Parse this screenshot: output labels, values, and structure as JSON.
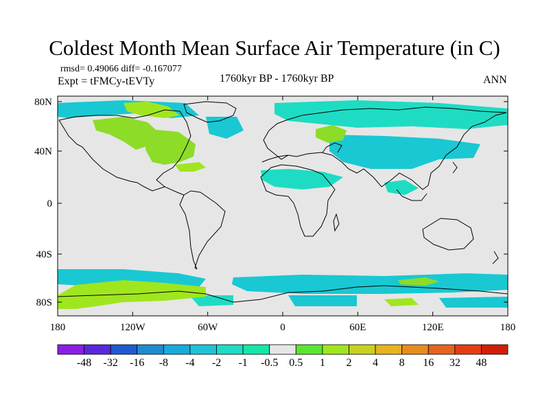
{
  "title": "Coldest Month Mean Surface Air Temperature (in C)",
  "stats_line": "rmsd= 0.49066 diff= -0.167077",
  "experiment_line": "Expt = tFMCy-tEVTy",
  "period_line": "1760kyr BP - 1760kyr BP",
  "season": "ANN",
  "lat_labels": [
    "80N",
    "40N",
    "0",
    "40S",
    "80S"
  ],
  "lon_labels": [
    "180",
    "120W",
    "60W",
    "0",
    "60E",
    "120E",
    "180"
  ],
  "colorbar": {
    "labels": [
      "-48",
      "-32",
      "-16",
      "-8",
      "-4",
      "-2",
      "-1",
      "-0.5",
      "0.5",
      "1",
      "2",
      "4",
      "8",
      "16",
      "32",
      "48"
    ],
    "colors": [
      "#8c1ee6",
      "#5a28dc",
      "#1e5ad2",
      "#1e8cd2",
      "#19aadc",
      "#1ec3d7",
      "#1edcc3",
      "#14e6aa",
      "#e6e6e6",
      "#5ae632",
      "#a0e61e",
      "#c8d21e",
      "#e6b41e",
      "#e68c1e",
      "#e6641e",
      "#e63c14",
      "#d21e0a"
    ]
  },
  "map_colors": {
    "background": "#e6e6e6",
    "cool_anomaly": "#19c8d2",
    "mild_cool_anomaly": "#1edcc3",
    "warm_anomaly": "#8cdc28",
    "strong_warm_anomaly": "#a0e61e",
    "coastline": "#000000"
  }
}
